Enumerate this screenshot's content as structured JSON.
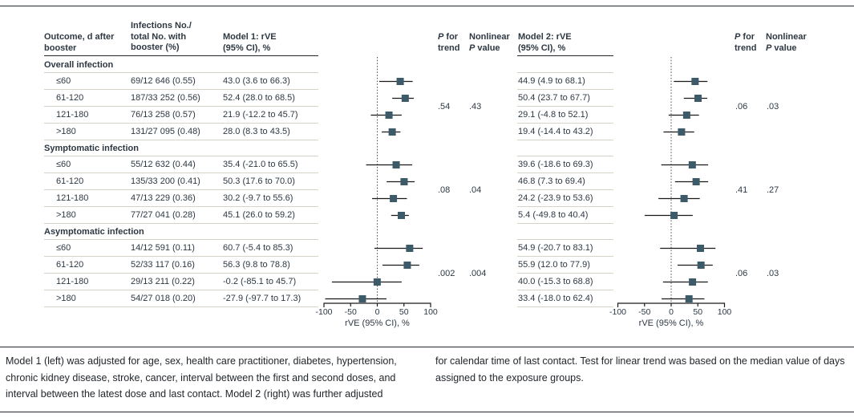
{
  "columns": {
    "outcome": [
      "Outcome, d after",
      "booster"
    ],
    "infections": [
      "Infections No./",
      "total No. with",
      "booster (%)"
    ],
    "model1": [
      "Model 1: rVE",
      "(95% CI), %"
    ],
    "model2": [
      "Model 2: rVE",
      "(95% CI), %"
    ],
    "p_trend": {
      "p": "P",
      "for": " for",
      "trend": "trend"
    },
    "nonlinear": {
      "line1": "Nonlinear",
      "p": "P",
      "value": " value"
    }
  },
  "footnote": {
    "left": "Model 1 (left) was adjusted for age, sex, health care practitioner, diabetes, hypertension, chronic kidney disease, stroke, cancer, interval between the first and second doses, and interval between the latest dose and last contact. Model 2 (right) was further adjusted",
    "right": "for calendar time of last contact. Test for linear trend was based on the median value of days assigned to the exposure groups."
  },
  "chart_data": {
    "type": "forest",
    "xlabel": "rVE (95% CI), %",
    "xticks": [
      -100,
      -50,
      0,
      50,
      100
    ],
    "xlim": [
      -100,
      100
    ],
    "colors": {
      "marker": "#3d5a69",
      "ci_line": "#1a1a1a",
      "zero_line": "#4a4a4a"
    },
    "groups": [
      {
        "label": "Overall infection",
        "m1_p_trend": ".54",
        "m1_nonlinear_p": ".43",
        "m2_p_trend": ".06",
        "m2_nonlinear_p": ".03",
        "rows": [
          {
            "outcome": "≤60",
            "infections": "69/12 646 (0.55)",
            "m1_text": "43.0 (3.6 to 66.3)",
            "m1_ci": [
              43.0,
              3.6,
              66.3
            ],
            "m2_text": "44.9 (4.9 to 68.1)",
            "m2_ci": [
              44.9,
              4.9,
              68.1
            ]
          },
          {
            "outcome": "61-120",
            "infections": "187/33 252 (0.56)",
            "m1_text": "52.4 (28.0 to 68.5)",
            "m1_ci": [
              52.4,
              28.0,
              68.5
            ],
            "m2_text": "50.4 (23.7 to 67.7)",
            "m2_ci": [
              50.4,
              23.7,
              67.7
            ]
          },
          {
            "outcome": "121-180",
            "infections": "76/13 258 (0.57)",
            "m1_text": "21.9 (-12.2 to 45.7)",
            "m1_ci": [
              21.9,
              -12.2,
              45.7
            ],
            "m2_text": "29.1 (-4.8 to 52.1)",
            "m2_ci": [
              29.1,
              -4.8,
              52.1
            ]
          },
          {
            "outcome": ">180",
            "infections": "131/27 095 (0.48)",
            "m1_text": "28.0 (8.3 to 43.5)",
            "m1_ci": [
              28.0,
              8.3,
              43.5
            ],
            "m2_text": "19.4 (-14.4 to 43.2)",
            "m2_ci": [
              19.4,
              -14.4,
              43.2
            ]
          }
        ]
      },
      {
        "label": "Symptomatic infection",
        "m1_p_trend": ".08",
        "m1_nonlinear_p": ".04",
        "m2_p_trend": ".41",
        "m2_nonlinear_p": ".27",
        "rows": [
          {
            "outcome": "≤60",
            "infections": "55/12 632 (0.44)",
            "m1_text": "35.4 (-21.0 to 65.5)",
            "m1_ci": [
              35.4,
              -21.0,
              65.5
            ],
            "m2_text": "39.6 (-18.6 to 69.3)",
            "m2_ci": [
              39.6,
              -18.6,
              69.3
            ]
          },
          {
            "outcome": "61-120",
            "infections": "135/33 200 (0.41)",
            "m1_text": "50.3 (17.6 to 70.0)",
            "m1_ci": [
              50.3,
              17.6,
              70.0
            ],
            "m2_text": "46.8 (7.3 to 69.4)",
            "m2_ci": [
              46.8,
              7.3,
              69.4
            ]
          },
          {
            "outcome": "121-180",
            "infections": "47/13 229 (0.36)",
            "m1_text": "30.2 (-9.7 to 55.6)",
            "m1_ci": [
              30.2,
              -9.7,
              55.6
            ],
            "m2_text": "24.2 (-23.9 to 53.6)",
            "m2_ci": [
              24.2,
              -23.9,
              53.6
            ]
          },
          {
            "outcome": ">180",
            "infections": "77/27 041 (0.28)",
            "m1_text": "45.1 (26.0 to 59.2)",
            "m1_ci": [
              45.1,
              26.0,
              59.2
            ],
            "m2_text": "5.4 (-49.8 to 40.4)",
            "m2_ci": [
              5.4,
              -49.8,
              40.4
            ]
          }
        ]
      },
      {
        "label": "Asymptomatic infection",
        "m1_p_trend": ".002",
        "m1_nonlinear_p": ".004",
        "m2_p_trend": ".06",
        "m2_nonlinear_p": ".03",
        "rows": [
          {
            "outcome": "≤60",
            "infections": "14/12 591 (0.11)",
            "m1_text": "60.7 (-5.4 to 85.3)",
            "m1_ci": [
              60.7,
              -5.4,
              85.3
            ],
            "m2_text": "54.9 (-20.7 to 83.1)",
            "m2_ci": [
              54.9,
              -20.7,
              83.1
            ]
          },
          {
            "outcome": "61-120",
            "infections": "52/33 117 (0.16)",
            "m1_text": "56.3 (9.8 to 78.8)",
            "m1_ci": [
              56.3,
              9.8,
              78.8
            ],
            "m2_text": "55.9 (12.0 to 77.9)",
            "m2_ci": [
              55.9,
              12.0,
              77.9
            ]
          },
          {
            "outcome": "121-180",
            "infections": "29/13 211 (0.22)",
            "m1_text": "-0.2 (-85.1 to 45.7)",
            "m1_ci": [
              -0.2,
              -85.1,
              45.7
            ],
            "m2_text": "40.0 (-15.3 to 68.8)",
            "m2_ci": [
              40.0,
              -15.3,
              68.8
            ]
          },
          {
            "outcome": ">180",
            "infections": "54/27 018 (0.20)",
            "m1_text": "-27.9 (-97.7 to 17.3)",
            "m1_ci": [
              -27.9,
              -97.7,
              17.3
            ],
            "m2_text": "33.4 (-18.0 to 62.4)",
            "m2_ci": [
              33.4,
              -18.0,
              62.4
            ]
          }
        ]
      }
    ]
  }
}
